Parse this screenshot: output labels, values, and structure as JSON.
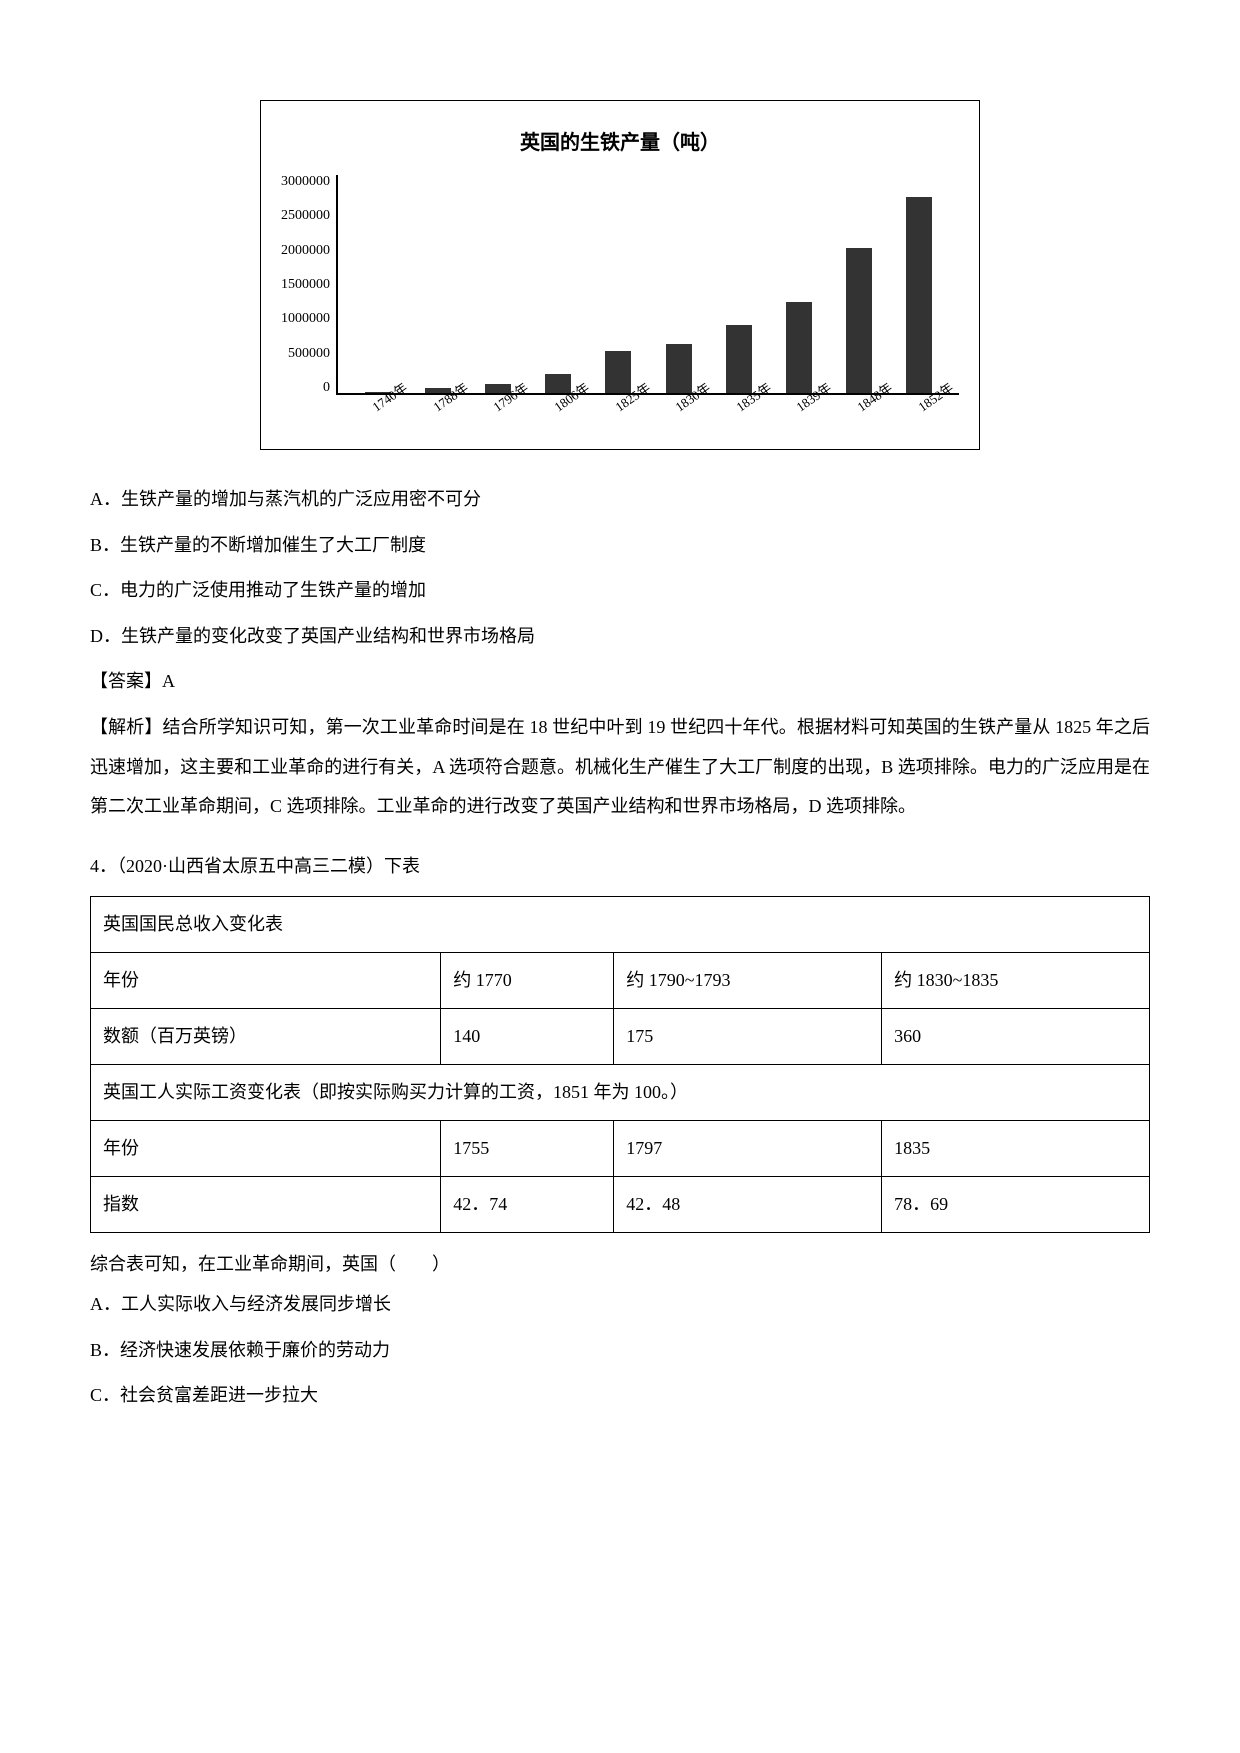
{
  "chart": {
    "title": "英国的生铁产量（吨）",
    "ylabels": [
      "3000000",
      "2500000",
      "2000000",
      "1500000",
      "1000000",
      "500000",
      "0"
    ],
    "ymax": 3000000,
    "bar_color": "#333333",
    "categories": [
      "1740年",
      "1788年",
      "1796年",
      "1806年",
      "1825年",
      "1830年",
      "1835年",
      "1839年",
      "1848年",
      "1852年"
    ],
    "values": [
      20000,
      70000,
      130000,
      260000,
      580000,
      680000,
      940000,
      1250000,
      2000000,
      2700000
    ]
  },
  "q3": {
    "options": {
      "A": "A．生铁产量的增加与蒸汽机的广泛应用密不可分",
      "B": "B．生铁产量的不断增加催生了大工厂制度",
      "C": "C．电力的广泛使用推动了生铁产量的增加",
      "D": "D．生铁产量的变化改变了英国产业结构和世界市场格局"
    },
    "answer": "【答案】A",
    "analysis": "【解析】结合所学知识可知，第一次工业革命时间是在 18 世纪中叶到 19 世纪四十年代。根据材料可知英国的生铁产量从 1825 年之后迅速增加，这主要和工业革命的进行有关，A 选项符合题意。机械化生产催生了大工厂制度的出现，B 选项排除。电力的广泛应用是在第二次工业革命期间，C 选项排除。工业革命的进行改变了英国产业结构和世界市场格局，D 选项排除。"
  },
  "q4": {
    "intro": "4．（2020·山西省太原五中高三二模）下表",
    "table1": {
      "caption": "英国国民总收入变化表",
      "row1": [
        "年份",
        "约 1770",
        "约 1790~1793",
        "约 1830~1835"
      ],
      "row2": [
        "数额（百万英镑）",
        "140",
        "175",
        "360"
      ]
    },
    "table1_note": "英国工人实际工资变化表（即按实际购买力计算的工资，1851 年为 100。）",
    "table2": {
      "row1": [
        "年份",
        "1755",
        "1797",
        "1835"
      ],
      "row2": [
        "指数",
        "42．74",
        "42．48",
        "78．69"
      ]
    },
    "stem": "综合表可知，在工业革命期间，英国（　　）",
    "options": {
      "A": "A．工人实际收入与经济发展同步增长",
      "B": "B．经济快速发展依赖于廉价的劳动力",
      "C": "C．社会贫富差距进一步拉大"
    }
  }
}
